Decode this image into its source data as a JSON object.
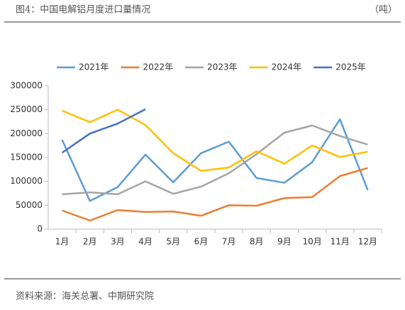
{
  "chart_data": {
    "type": "line",
    "title": "图4：中国电解铝月度进口量情况",
    "unit_label": "（吨）",
    "source": "资料来源：海关总署、中期研究院",
    "categories": [
      "1月",
      "2月",
      "3月",
      "4月",
      "5月",
      "6月",
      "7月",
      "8月",
      "9月",
      "10月",
      "11月",
      "12月"
    ],
    "series": [
      {
        "name": "2021年",
        "color": "#5b9bd5",
        "values": [
          187000,
          59000,
          88000,
          156000,
          98000,
          159000,
          183000,
          107000,
          97000,
          140000,
          230000,
          82000
        ]
      },
      {
        "name": "2022年",
        "color": "#ed7d31",
        "values": [
          39000,
          18000,
          40000,
          36000,
          37000,
          28000,
          50000,
          49000,
          65000,
          67000,
          111000,
          128000
        ]
      },
      {
        "name": "2023年",
        "color": "#a5a5a5",
        "values": [
          73000,
          77000,
          73000,
          100000,
          74000,
          89000,
          117000,
          157000,
          202000,
          217000,
          195000,
          177000
        ]
      },
      {
        "name": "2024年",
        "color": "#ffc000",
        "values": [
          248000,
          224000,
          250000,
          218000,
          159000,
          122000,
          129000,
          163000,
          137000,
          175000,
          151000,
          162000
        ]
      },
      {
        "name": "2025年",
        "color": "#4472c4",
        "values": [
          160000,
          200000,
          221000,
          251000,
          null,
          null,
          null,
          null,
          null,
          null,
          null,
          null
        ]
      }
    ],
    "ylim": [
      0,
      300000
    ],
    "yticks": [
      0,
      50000,
      100000,
      150000,
      200000,
      250000,
      300000
    ],
    "grid": false,
    "legend": "top"
  }
}
